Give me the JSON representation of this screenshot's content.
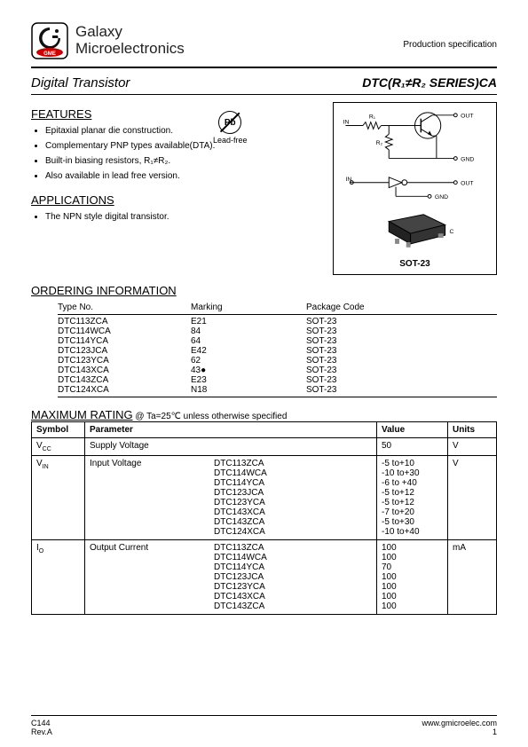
{
  "header": {
    "company1": "Galaxy",
    "company2": "Microelectronics",
    "prodspec": "Production specification"
  },
  "title": {
    "left": "Digital Transistor",
    "right": "DTC(R₁≠R₂ SERIES)CA"
  },
  "features": {
    "heading": "FEATURES",
    "items": [
      "Epitaxial planar die construction.",
      "Complementary PNP types available(DTA).",
      "Built-in biasing resistors, R₁≠R₂.",
      "Also available in lead free version."
    ]
  },
  "leadfree": {
    "symbol": "Pb",
    "label": "Lead-free"
  },
  "applications": {
    "heading": "APPLICATIONS",
    "items": [
      "The NPN style digital transistor."
    ]
  },
  "schematic": {
    "labels": {
      "in": "IN",
      "out": "OUT",
      "gnd": "GND",
      "r1": "R₁",
      "r2": "R₂",
      "c": "C",
      "sot": "SOT-23"
    }
  },
  "ordering": {
    "heading": "ORDERING INFORMATION",
    "cols": [
      "Type No.",
      "Marking",
      "Package Code"
    ],
    "rows": [
      [
        "DTC113ZCA",
        "E21",
        "SOT-23"
      ],
      [
        "DTC114WCA",
        "84",
        "SOT-23"
      ],
      [
        "DTC114YCA",
        "64",
        "SOT-23"
      ],
      [
        "DTC123JCA",
        "E42",
        "SOT-23"
      ],
      [
        "DTC123YCA",
        "62",
        "SOT-23"
      ],
      [
        "DTC143XCA",
        "43●",
        "SOT-23"
      ],
      [
        "DTC143ZCA",
        "E23",
        "SOT-23"
      ],
      [
        "DTC124XCA",
        "N18",
        "SOT-23"
      ]
    ]
  },
  "maxrating": {
    "heading": "MAXIMUM RATING",
    "cond": " @ Ta=25℃ unless otherwise specified",
    "cols": [
      "Symbol",
      "Parameter",
      "Value",
      "Units"
    ],
    "rows": [
      {
        "symbol": "V_CC",
        "param": "Supply Voltage",
        "parts": [],
        "values": [
          "50"
        ],
        "units": "V"
      },
      {
        "symbol": "V_IN",
        "param": "Input Voltage",
        "parts": [
          "DTC113ZCA",
          "DTC114WCA",
          "DTC114YCA",
          "DTC123JCA",
          "DTC123YCA",
          "DTC143XCA",
          "DTC143ZCA",
          "DTC124XCA"
        ],
        "values": [
          "-5 to+10",
          "-10 to+30",
          "-6 to +40",
          "-5 to+12",
          "-5 to+12",
          "-7 to+20",
          "-5 to+30",
          "-10 to+40"
        ],
        "units": "V"
      },
      {
        "symbol": "I_O",
        "param": "Output Current",
        "parts": [
          "DTC113ZCA",
          "DTC114WCA",
          "DTC114YCA",
          "DTC123JCA",
          "DTC123YCA",
          "DTC143XCA",
          "DTC143ZCA"
        ],
        "values": [
          "100",
          "100",
          "70",
          "100",
          "100",
          "100",
          "100"
        ],
        "units": "mA"
      }
    ]
  },
  "footer": {
    "left1": "C144",
    "left2": "Rev.A",
    "right1": "www.gmicroelec.com",
    "right2": "1"
  }
}
